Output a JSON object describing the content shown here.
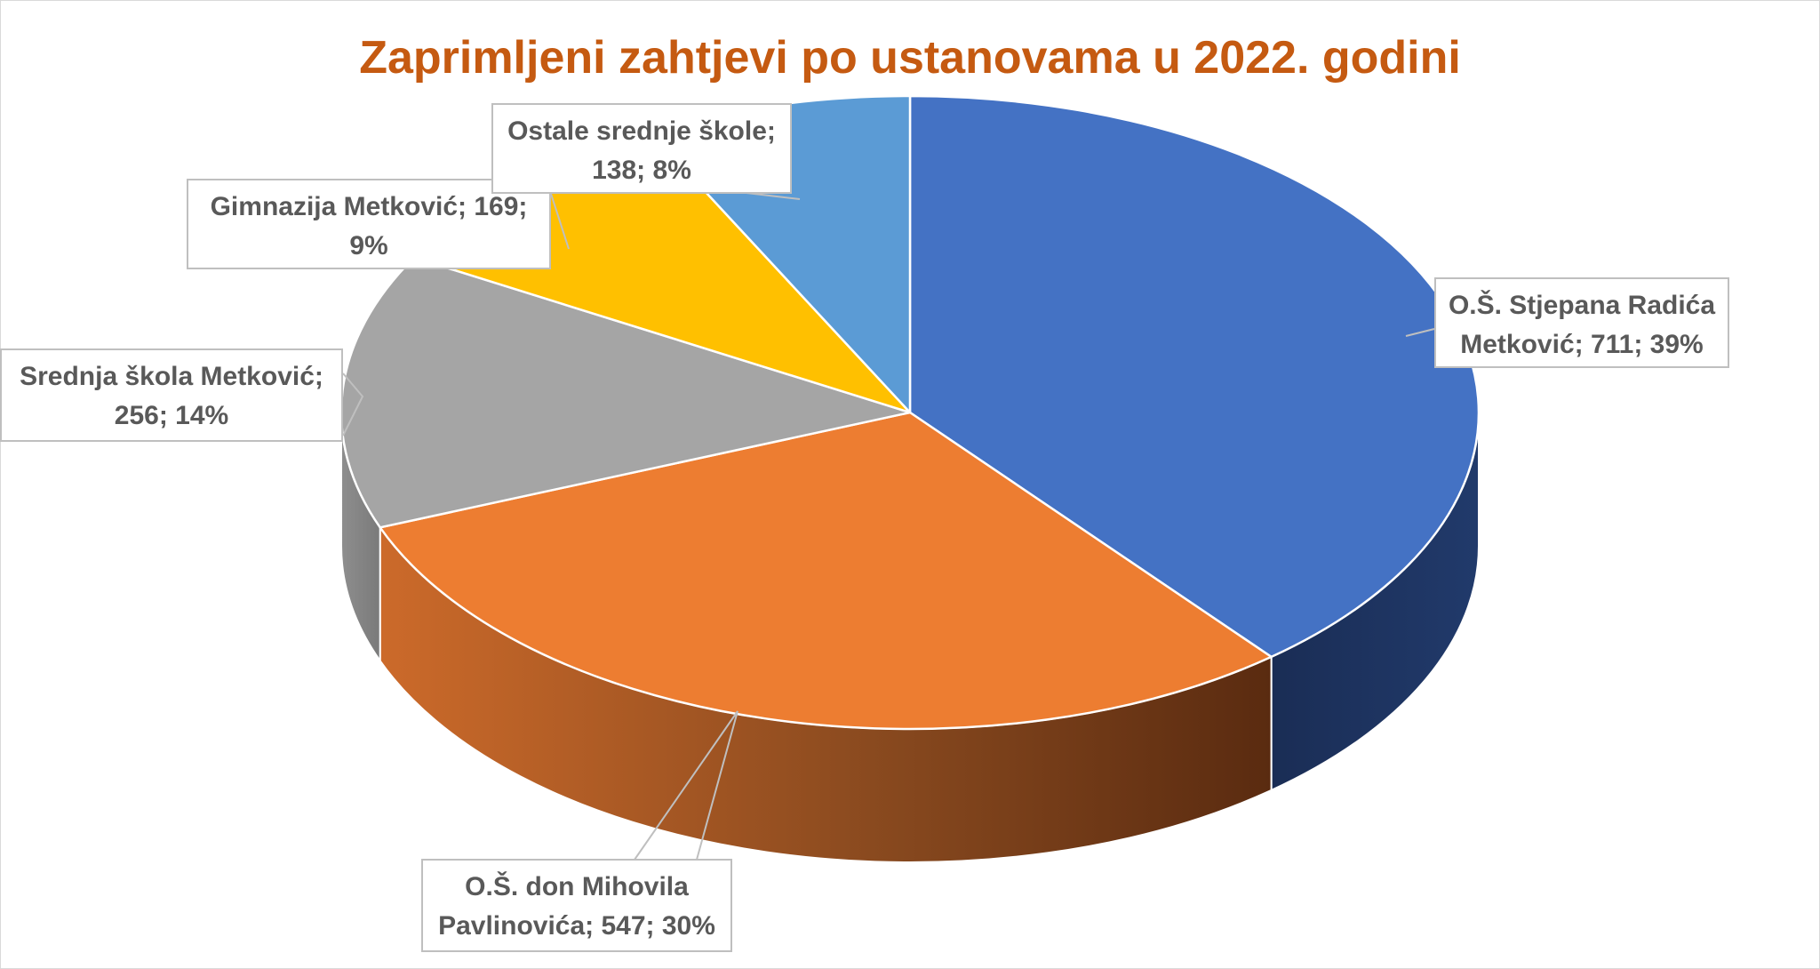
{
  "chart_data": {
    "type": "pie",
    "title": "Zaprimljeni zahtjevi po ustanovama u 2022. godini",
    "style": "3d",
    "slices": [
      {
        "name": "O.Š. Stjepana Radića Metković",
        "value": 711,
        "percent": 39,
        "color": "#4472c4",
        "label_lines": [
          "O.Š. Stjepana Radića",
          "Metković; 711; 39%"
        ]
      },
      {
        "name": "O.Š. don Mihovila Pavlinovića",
        "value": 547,
        "percent": 30,
        "color": "#ed7d31",
        "label_lines": [
          "O.Š. don Mihovila",
          "Pavlinovića; 547; 30%"
        ]
      },
      {
        "name": "Srednja škola Metković",
        "value": 256,
        "percent": 14,
        "color": "#a5a5a5",
        "label_lines": [
          "Srednja škola Metković;",
          "256; 14%"
        ]
      },
      {
        "name": "Gimnazija Metković",
        "value": 169,
        "percent": 9,
        "color": "#ffc000",
        "label_lines": [
          "Gimnazija Metković; 169;",
          "9%"
        ]
      },
      {
        "name": "Ostale srednje škole",
        "value": 138,
        "percent": 8,
        "color": "#5b9bd5",
        "label_lines": [
          "Ostale srednje škole;",
          "138; 8%"
        ]
      }
    ]
  }
}
